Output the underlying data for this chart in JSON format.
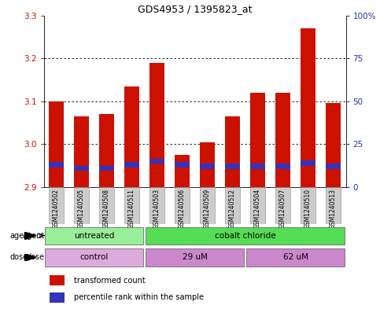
{
  "title": "GDS4953 / 1395823_at",
  "samples": [
    "GSM1240502",
    "GSM1240505",
    "GSM1240508",
    "GSM1240511",
    "GSM1240503",
    "GSM1240506",
    "GSM1240509",
    "GSM1240512",
    "GSM1240504",
    "GSM1240507",
    "GSM1240510",
    "GSM1240513"
  ],
  "transformed_count": [
    3.1,
    3.065,
    3.07,
    3.135,
    3.19,
    2.975,
    3.005,
    3.065,
    3.12,
    3.12,
    3.27,
    3.095
  ],
  "percentile_pct": [
    13,
    11,
    11,
    13,
    15,
    13,
    12,
    12,
    12,
    12,
    14,
    12
  ],
  "ymin": 2.9,
  "ymax": 3.3,
  "y_ticks_left": [
    2.9,
    3.0,
    3.1,
    3.2,
    3.3
  ],
  "y_ticks_right": [
    0,
    25,
    50,
    75,
    100
  ],
  "bar_color": "#cc1100",
  "blue_color": "#3333bb",
  "bar_width": 0.6,
  "agent_groups": [
    {
      "label": "untreated",
      "start": 0,
      "end": 3,
      "color": "#99ee99"
    },
    {
      "label": "cobalt chloride",
      "start": 4,
      "end": 11,
      "color": "#55dd55"
    }
  ],
  "dose_groups": [
    {
      "label": "control",
      "start": 0,
      "end": 3,
      "color": "#ddaadd"
    },
    {
      "label": "29 uM",
      "start": 4,
      "end": 7,
      "color": "#cc88cc"
    },
    {
      "label": "62 uM",
      "start": 8,
      "end": 11,
      "color": "#cc88cc"
    }
  ],
  "legend_red": "transformed count",
  "legend_blue": "percentile rank within the sample",
  "tick_color_left": "#cc1100",
  "tick_color_right": "#2233bb"
}
